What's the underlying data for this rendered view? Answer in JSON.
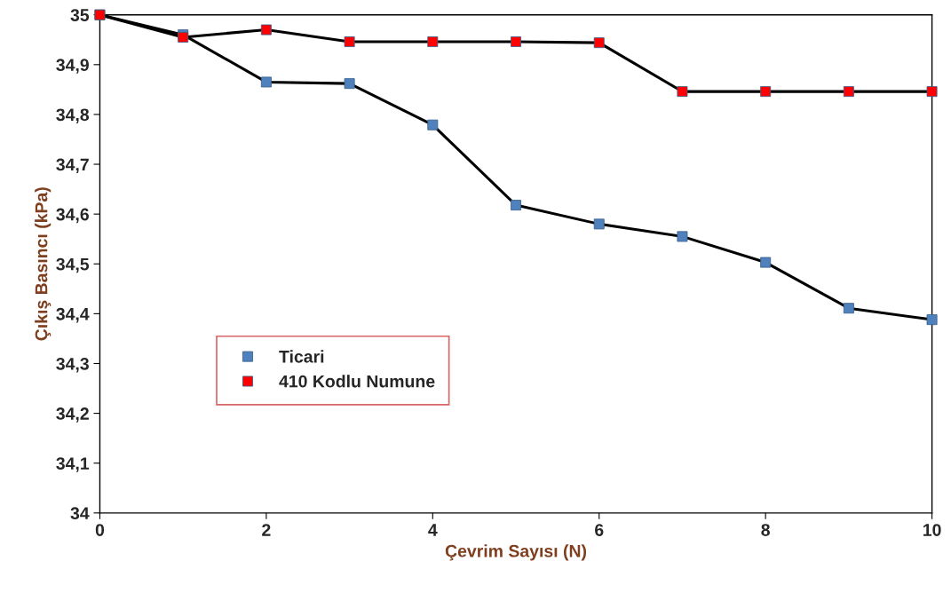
{
  "chart_data": {
    "type": "line",
    "xlabel": "Çevrim Sayısı (N)",
    "ylabel": "Çıkış Basıncı (kPa)",
    "x": [
      0,
      1,
      2,
      3,
      4,
      5,
      6,
      7,
      8,
      9,
      10
    ],
    "series": [
      {
        "name": "Ticari",
        "color": "#4f81bd",
        "values": [
          35.0,
          34.96,
          34.865,
          34.862,
          34.779,
          34.618,
          34.58,
          34.555,
          34.503,
          34.411,
          34.388
        ]
      },
      {
        "name": "410 Kodlu Numune",
        "color": "#ff0000",
        "values": [
          35.0,
          34.955,
          34.97,
          34.946,
          34.946,
          34.946,
          34.944,
          34.846,
          34.846,
          34.846,
          34.846
        ]
      }
    ],
    "xlim": [
      0,
      10
    ],
    "xticks": [
      0,
      2,
      4,
      6,
      8,
      10
    ],
    "ylim": [
      34,
      35
    ],
    "yticks": [
      {
        "value": 34,
        "label": "34"
      },
      {
        "value": 34.1,
        "label": "34,1"
      },
      {
        "value": 34.2,
        "label": "34,2"
      },
      {
        "value": 34.3,
        "label": "34,3"
      },
      {
        "value": 34.4,
        "label": "34,4"
      },
      {
        "value": 34.5,
        "label": "34,5"
      },
      {
        "value": 34.6,
        "label": "34,6"
      },
      {
        "value": 34.7,
        "label": "34,7"
      },
      {
        "value": 34.8,
        "label": "34,8"
      },
      {
        "value": 34.9,
        "label": "34,9"
      },
      {
        "value": 35,
        "label": "35"
      }
    ],
    "grid": false,
    "legend": "lower left",
    "marker": "square",
    "line_style": "solid"
  }
}
